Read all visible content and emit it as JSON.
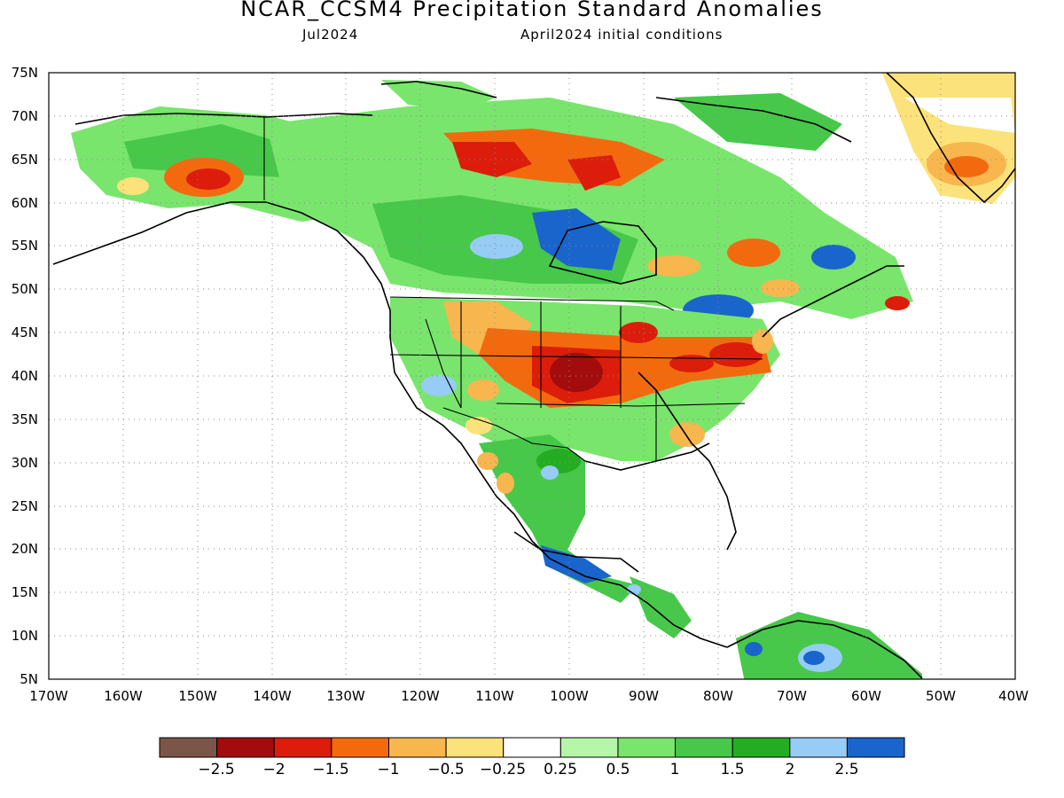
{
  "header": {
    "title": "NCAR_CCSM4 Precipitation Standard Anomalies",
    "month": "Jul2024",
    "init": "April2024 initial conditions"
  },
  "map": {
    "lat_labels": [
      "75N",
      "70N",
      "65N",
      "60N",
      "55N",
      "50N",
      "45N",
      "40N",
      "35N",
      "30N",
      "25N",
      "20N",
      "15N",
      "10N",
      "5N"
    ],
    "lon_labels": [
      "170W",
      "160W",
      "150W",
      "140W",
      "130W",
      "120W",
      "110W",
      "100W",
      "90W",
      "80W",
      "70W",
      "60W",
      "50W",
      "40W"
    ],
    "anomaly_regions": [
      {
        "id": "alaska-south",
        "color": "#e3300f",
        "lon": -148,
        "lat": 62
      },
      {
        "id": "nw-territories-north",
        "color": "#a30c0c",
        "lon": -108,
        "lat": 65
      },
      {
        "id": "hudson-west",
        "color": "#e3300f",
        "lon": -95,
        "lat": 62
      },
      {
        "id": "central-plains",
        "color": "#a30c0c",
        "lon": -99,
        "lat": 41
      },
      {
        "id": "midwest",
        "color": "#e3300f",
        "lon": -88,
        "lat": 41
      },
      {
        "id": "northeast-us",
        "color": "#e3300f",
        "lon": -77,
        "lat": 42
      },
      {
        "id": "quebec-north",
        "color": "#1a65cc",
        "lon": -103,
        "lat": 56
      },
      {
        "id": "mexico-south",
        "color": "#1a65cc",
        "lon": -99,
        "lat": 18
      },
      {
        "id": "newfoundland",
        "color": "#a30c0c",
        "lon": -54,
        "lat": 48
      }
    ]
  },
  "colorbar": {
    "colors": [
      "#7a5548",
      "#a30c0c",
      "#dc1d0c",
      "#f36a0e",
      "#f8b64e",
      "#fce27a",
      "#ffffff",
      "#b5f6a8",
      "#79e56c",
      "#47c84a",
      "#24ad23",
      "#96ccf6",
      "#1a65cc"
    ],
    "labels": [
      "−2.5",
      "−2",
      "−1.5",
      "−1",
      "−0.5",
      "−0.25",
      "0.25",
      "0.5",
      "1",
      "1.5",
      "2",
      "2.5"
    ]
  }
}
